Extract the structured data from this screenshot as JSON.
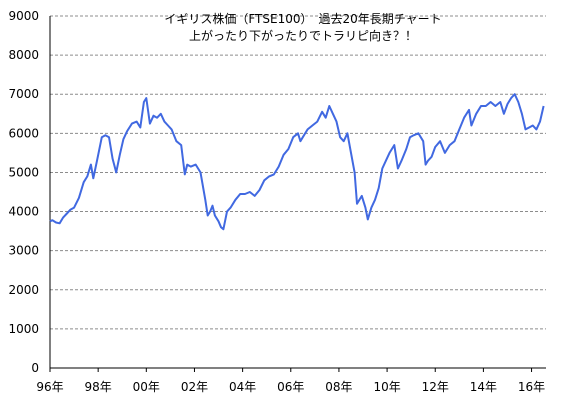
{
  "chart_data": {
    "type": "line",
    "title": "イギリス株価（FTSE100）　過去20年長期チャート",
    "subtitle": "上がったり下がったりでトラリピ向き？！",
    "xlabel": "",
    "ylabel": "",
    "ylim": [
      0,
      9000
    ],
    "xlim": [
      1996.0,
      2016.6
    ],
    "y_ticks": [
      "0",
      "1000",
      "2000",
      "3000",
      "4000",
      "5000",
      "6000",
      "7000",
      "8000",
      "9000"
    ],
    "x_ticks": [
      {
        "value": 1996,
        "label": "96年"
      },
      {
        "value": 1998,
        "label": "98年"
      },
      {
        "value": 2000,
        "label": "00年"
      },
      {
        "value": 2002,
        "label": "02年"
      },
      {
        "value": 2004,
        "label": "04年"
      },
      {
        "value": 2006,
        "label": "06年"
      },
      {
        "value": 2008,
        "label": "08年"
      },
      {
        "value": 2010,
        "label": "10年"
      },
      {
        "value": 2012,
        "label": "12年"
      },
      {
        "value": 2014,
        "label": "14年"
      },
      {
        "value": 2016,
        "label": "16年"
      }
    ],
    "grid": true,
    "line_color": "#4169e1",
    "series": [
      {
        "x": [
          1996.0,
          1996.1,
          1996.25,
          1996.4,
          1996.55,
          1996.7,
          1996.85,
          1997.0,
          1997.2,
          1997.4,
          1997.55,
          1997.7,
          1997.8,
          1997.95,
          1998.15,
          1998.3,
          1998.45,
          1998.6,
          1998.75,
          1998.9,
          1999.05,
          1999.2,
          1999.4,
          1999.6,
          1999.75,
          1999.9,
          2000.0,
          2000.15,
          2000.3,
          2000.45,
          2000.6,
          2000.75,
          2000.9,
          2001.05,
          2001.25,
          2001.45,
          2001.6,
          2001.7,
          2001.85,
          2002.05,
          2002.25,
          2002.45,
          2002.55,
          2002.65,
          2002.75,
          2002.85,
          2003.0,
          2003.1,
          2003.2,
          2003.35,
          2003.5,
          2003.7,
          2003.9,
          2004.1,
          2004.3,
          2004.5,
          2004.7,
          2004.9,
          2005.1,
          2005.3,
          2005.5,
          2005.7,
          2005.9,
          2006.1,
          2006.3,
          2006.4,
          2006.5,
          2006.7,
          2006.9,
          2007.1,
          2007.3,
          2007.45,
          2007.6,
          2007.75,
          2007.9,
          2008.05,
          2008.2,
          2008.35,
          2008.5,
          2008.65,
          2008.75,
          2008.85,
          2008.95,
          2009.1,
          2009.2,
          2009.35,
          2009.5,
          2009.65,
          2009.8,
          2009.95,
          2010.1,
          2010.3,
          2010.45,
          2010.6,
          2010.8,
          2010.95,
          2011.1,
          2011.3,
          2011.5,
          2011.6,
          2011.7,
          2011.85,
          2012.0,
          2012.2,
          2012.4,
          2012.6,
          2012.8,
          2013.0,
          2013.2,
          2013.4,
          2013.5,
          2013.7,
          2013.9,
          2014.1,
          2014.3,
          2014.5,
          2014.7,
          2014.85,
          2015.0,
          2015.15,
          2015.3,
          2015.45,
          2015.6,
          2015.75,
          2015.9,
          2016.05,
          2016.2,
          2016.35,
          2016.5
        ],
        "y": [
          3750,
          3780,
          3720,
          3700,
          3850,
          3950,
          4050,
          4100,
          4350,
          4750,
          4900,
          5200,
          4850,
          5300,
          5900,
          5950,
          5900,
          5350,
          5000,
          5450,
          5850,
          6050,
          6250,
          6300,
          6150,
          6800,
          6900,
          6250,
          6450,
          6400,
          6500,
          6300,
          6200,
          6100,
          5800,
          5700,
          4950,
          5200,
          5150,
          5200,
          5000,
          4300,
          3900,
          4000,
          4150,
          3900,
          3750,
          3600,
          3550,
          4000,
          4100,
          4300,
          4450,
          4450,
          4500,
          4400,
          4550,
          4800,
          4900,
          4950,
          5150,
          5450,
          5600,
          5900,
          6000,
          5800,
          5900,
          6100,
          6200,
          6300,
          6550,
          6400,
          6700,
          6500,
          6300,
          5900,
          5800,
          6000,
          5500,
          5000,
          4200,
          4300,
          4400,
          4100,
          3800,
          4100,
          4300,
          4600,
          5100,
          5300,
          5500,
          5700,
          5100,
          5300,
          5600,
          5900,
          5950,
          6000,
          5800,
          5200,
          5300,
          5400,
          5650,
          5800,
          5500,
          5700,
          5800,
          6100,
          6400,
          6600,
          6200,
          6500,
          6700,
          6700,
          6800,
          6700,
          6800,
          6500,
          6750,
          6900,
          7000,
          6800,
          6500,
          6100,
          6150,
          6200,
          6100,
          6300,
          6700
        ]
      }
    ]
  }
}
